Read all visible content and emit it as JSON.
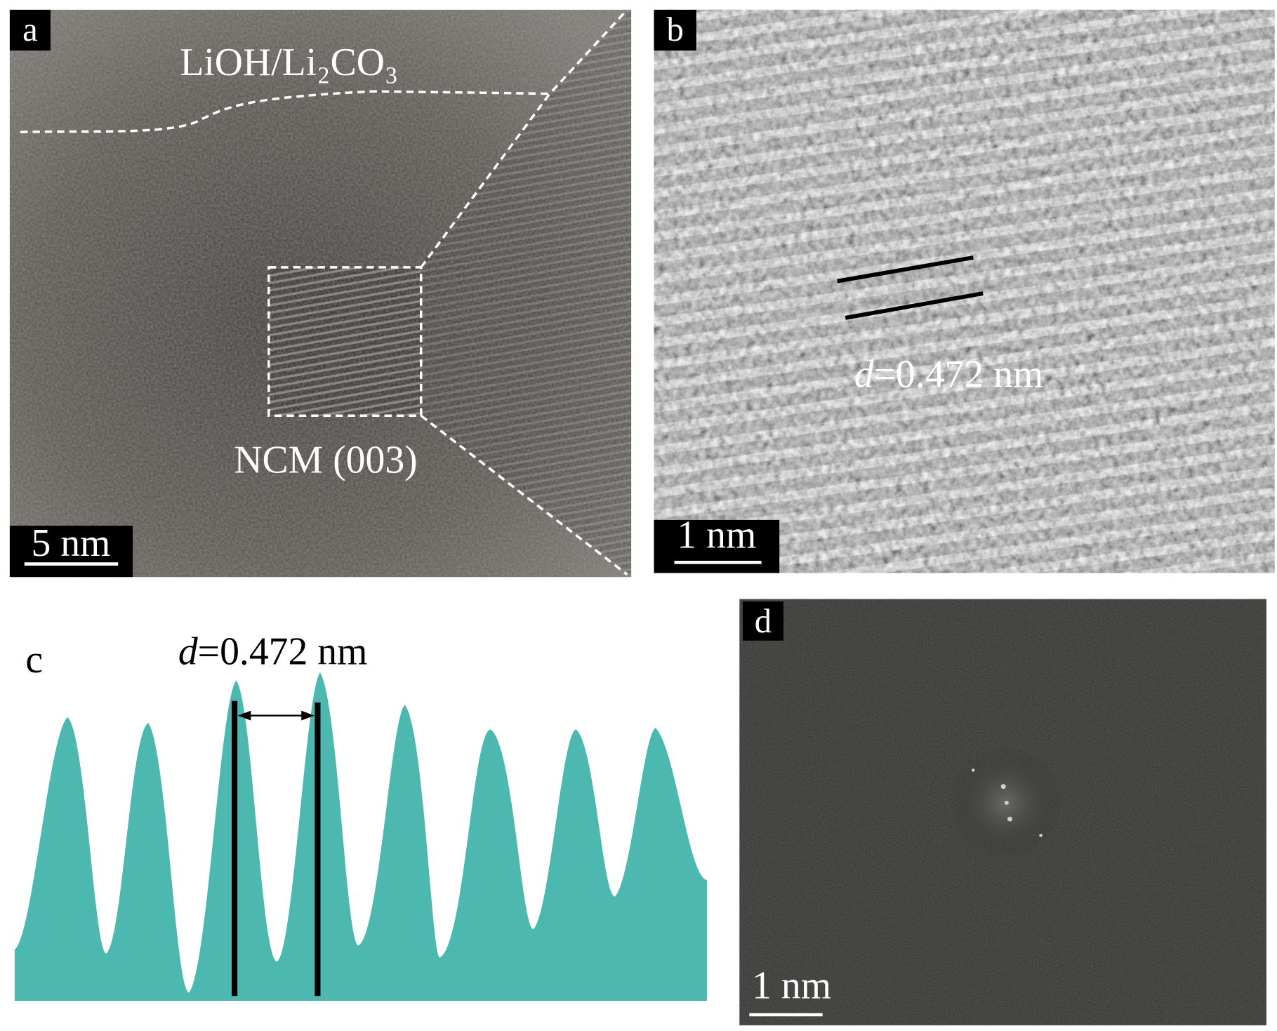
{
  "panels": [
    {
      "label": "a",
      "phase_label": "LiOH/Li₂CO₃",
      "region_label": "NCM (003)",
      "scale_bar": "5 nm"
    },
    {
      "label": "b",
      "spacing": {
        "symbol": "d",
        "value": "=0.472 nm"
      },
      "scale_bar": "1 nm"
    },
    {
      "label": "c",
      "spacing": {
        "symbol": "d",
        "value": "=0.472 nm"
      }
    },
    {
      "label": "d",
      "scale_bar": "1 nm"
    }
  ]
}
